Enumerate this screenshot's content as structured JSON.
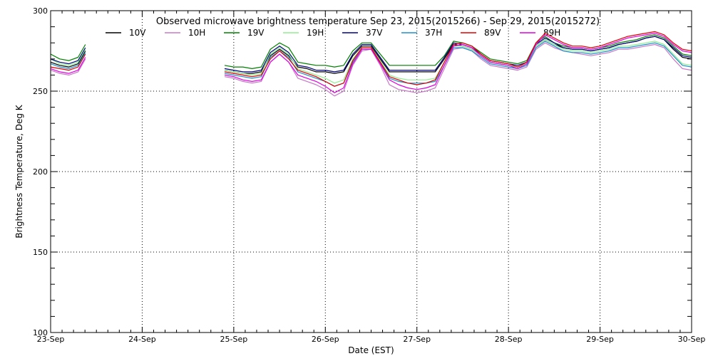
{
  "chart_data": {
    "type": "line",
    "title": "Observed microwave brightness temperature Sep 23, 2015(2015266) - Sep 29, 2015(2015272)",
    "xlabel": "Date (EST)",
    "ylabel": "Brightness Temperature, Deg K",
    "ylim": [
      100,
      300
    ],
    "yticks": [
      100,
      150,
      200,
      250,
      300
    ],
    "xlim": [
      0,
      7
    ],
    "x_tick_labels": [
      "23-Sep",
      "24-Sep",
      "25-Sep",
      "26-Sep",
      "27-Sep",
      "28-Sep",
      "29-Sep",
      "30-Sep"
    ],
    "grid": "dotted",
    "legend_placement": "top",
    "x_unit": "days since 23-Sep 00:00 EST",
    "x": [
      0.0,
      0.1,
      0.2,
      0.3,
      0.38,
      1.8,
      1.9,
      2.0,
      2.1,
      2.2,
      2.3,
      2.4,
      2.5,
      2.6,
      2.7,
      2.8,
      2.9,
      3.0,
      3.1,
      3.2,
      3.3,
      3.4,
      3.5,
      3.6,
      3.7,
      3.8,
      3.9,
      4.0,
      4.1,
      4.2,
      4.3,
      4.4,
      4.5,
      4.6,
      4.7,
      4.8,
      4.9,
      5.0,
      5.1,
      5.2,
      5.3,
      5.4,
      5.5,
      5.6,
      5.7,
      5.8,
      5.9,
      6.0,
      6.1,
      6.2,
      6.3,
      6.4,
      6.5,
      6.6,
      6.7,
      6.8,
      6.9,
      7.0
    ],
    "series": [
      {
        "name": "10V",
        "color": "#000000",
        "values": [
          268,
          266,
          265,
          267,
          275,
          null,
          263,
          262,
          261,
          261,
          262,
          272,
          276,
          272,
          265,
          264,
          262,
          262,
          261,
          262,
          272,
          278,
          278,
          270,
          262,
          262,
          262,
          262,
          262,
          262,
          270,
          279,
          278,
          276,
          272,
          268,
          267,
          266,
          265,
          267,
          278,
          282,
          279,
          277,
          276,
          276,
          275,
          276,
          277,
          279,
          280,
          281,
          283,
          284,
          282,
          276,
          271,
          270
        ]
      },
      {
        "name": "10H",
        "color": "#c878c8",
        "values": [
          263,
          261,
          260,
          262,
          270,
          null,
          259,
          258,
          256,
          255,
          256,
          268,
          273,
          268,
          258,
          256,
          254,
          251,
          247,
          250,
          266,
          275,
          276,
          266,
          254,
          251,
          250,
          249,
          250,
          252,
          264,
          276,
          277,
          275,
          270,
          266,
          265,
          264,
          263,
          265,
          276,
          280,
          277,
          275,
          274,
          273,
          272,
          273,
          274,
          276,
          276,
          277,
          278,
          279,
          277,
          270,
          264,
          263
        ]
      },
      {
        "name": "19V",
        "color": "#008000",
        "values": [
          273,
          270,
          269,
          271,
          279,
          null,
          266,
          265,
          265,
          264,
          265,
          276,
          280,
          277,
          268,
          267,
          266,
          266,
          265,
          266,
          275,
          280,
          280,
          273,
          266,
          266,
          266,
          266,
          266,
          266,
          272,
          281,
          280,
          278,
          274,
          270,
          269,
          268,
          267,
          269,
          280,
          284,
          280,
          278,
          277,
          277,
          276,
          277,
          278,
          280,
          281,
          282,
          284,
          285,
          283,
          278,
          273,
          272
        ]
      },
      {
        "name": "19H",
        "color": "#90ee90",
        "values": [
          270,
          267,
          266,
          268,
          276,
          null,
          263,
          262,
          261,
          260,
          261,
          273,
          277,
          273,
          264,
          262,
          260,
          258,
          255,
          257,
          270,
          277,
          277,
          269,
          260,
          258,
          257,
          257,
          257,
          258,
          268,
          278,
          278,
          276,
          272,
          268,
          267,
          266,
          265,
          267,
          278,
          282,
          279,
          276,
          275,
          275,
          274,
          275,
          276,
          278,
          278,
          279,
          280,
          281,
          279,
          273,
          267,
          266
        ]
      },
      {
        "name": "37V",
        "color": "#000080",
        "values": [
          270,
          268,
          267,
          269,
          277,
          null,
          264,
          263,
          262,
          262,
          263,
          274,
          278,
          274,
          266,
          265,
          263,
          263,
          262,
          263,
          273,
          279,
          279,
          271,
          263,
          263,
          263,
          263,
          263,
          263,
          271,
          280,
          279,
          277,
          273,
          269,
          268,
          267,
          266,
          268,
          279,
          283,
          280,
          277,
          276,
          276,
          275,
          276,
          277,
          279,
          280,
          281,
          283,
          284,
          282,
          277,
          272,
          271
        ]
      },
      {
        "name": "37H",
        "color": "#1e90c8",
        "values": [
          267,
          265,
          264,
          266,
          274,
          null,
          261,
          260,
          259,
          258,
          259,
          271,
          275,
          271,
          262,
          260,
          258,
          256,
          253,
          255,
          268,
          276,
          276,
          268,
          258,
          256,
          255,
          255,
          255,
          256,
          266,
          277,
          277,
          275,
          271,
          267,
          266,
          265,
          264,
          266,
          277,
          281,
          278,
          275,
          274,
          274,
          273,
          274,
          275,
          277,
          277,
          278,
          279,
          280,
          278,
          272,
          266,
          265
        ]
      },
      {
        "name": "89V",
        "color": "#e00000",
        "values": [
          265,
          264,
          263,
          265,
          273,
          null,
          262,
          261,
          260,
          259,
          260,
          270,
          275,
          270,
          263,
          261,
          259,
          256,
          253,
          255,
          269,
          277,
          277,
          268,
          259,
          257,
          255,
          254,
          255,
          257,
          268,
          279,
          280,
          278,
          273,
          269,
          268,
          267,
          265,
          268,
          280,
          286,
          283,
          280,
          278,
          278,
          277,
          278,
          280,
          282,
          284,
          285,
          286,
          287,
          285,
          280,
          276,
          275
        ]
      },
      {
        "name": "89H",
        "color": "#e000e0",
        "values": [
          264,
          262,
          261,
          263,
          271,
          null,
          260,
          259,
          257,
          256,
          257,
          268,
          273,
          268,
          260,
          258,
          256,
          253,
          249,
          252,
          267,
          276,
          276,
          267,
          257,
          254,
          252,
          251,
          252,
          254,
          266,
          278,
          279,
          277,
          272,
          268,
          267,
          266,
          264,
          267,
          279,
          285,
          282,
          279,
          277,
          277,
          276,
          277,
          279,
          281,
          283,
          284,
          285,
          286,
          284,
          279,
          275,
          274
        ]
      }
    ]
  }
}
